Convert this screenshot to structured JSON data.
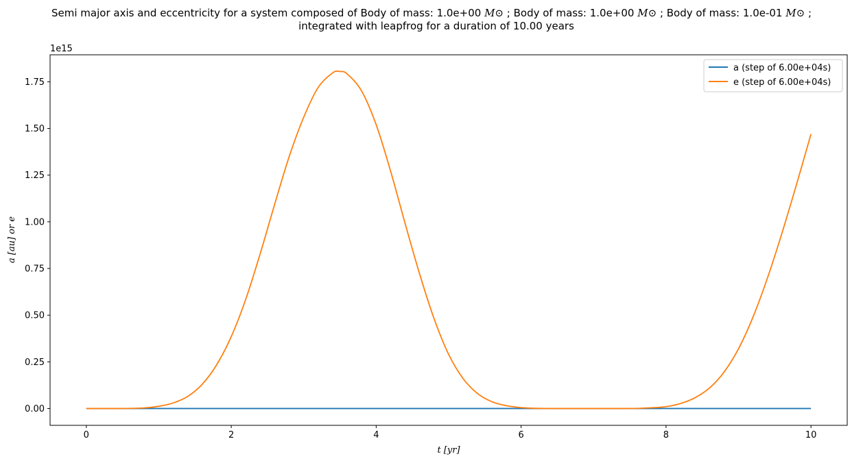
{
  "chart_data": {
    "type": "line",
    "title_line1_parts": [
      "Semi major axis and eccentricity for a system composed of Body of mass: 1.0e+00 ",
      " ; Body of mass: 1.0e+00 ",
      " ; Body of mass: 1.0e-01 ",
      " ;"
    ],
    "msun_symbol": "M⊙",
    "title_line2": "integrated with leapfrog for a duration of 10.00 years",
    "xlabel": "t [yr]",
    "ylabel": "a [au] or e",
    "y_offset_label": "1e15",
    "xlim": [
      -0.5,
      10.5
    ],
    "ylim": [
      -90000000000000.0,
      1894500000000000.0
    ],
    "x_ticks": [
      0,
      2,
      4,
      6,
      8,
      10
    ],
    "x_tick_labels": [
      "0",
      "2",
      "4",
      "6",
      "8",
      "10"
    ],
    "y_ticks": [
      0,
      250000000000000.0,
      500000000000000.0,
      750000000000000.0,
      1000000000000000.0,
      1250000000000000.0,
      1500000000000000.0,
      1750000000000000.0
    ],
    "y_tick_labels": [
      "0.00",
      "0.25",
      "0.50",
      "0.75",
      "1.00",
      "1.25",
      "1.50",
      "1.75"
    ],
    "grid": false,
    "legend_position": "top-right",
    "series": [
      {
        "name": "a (step of 6.00e+04s)",
        "color": "#1f77b4",
        "x": [
          0,
          1,
          2,
          3,
          4,
          5,
          6,
          7,
          8,
          9,
          10
        ],
        "y": [
          0,
          0,
          0,
          0,
          0,
          0,
          0,
          0,
          0,
          0,
          0
        ]
      },
      {
        "name": "e (step of 6.00e+04s)",
        "color": "#ff7f0e",
        "x": [
          0,
          0.5,
          0.8,
          1.0,
          1.2,
          1.4,
          1.6,
          1.8,
          2.0,
          2.2,
          2.4,
          2.6,
          2.8,
          3.0,
          3.2,
          3.4,
          3.5,
          3.6,
          3.8,
          4.0,
          4.2,
          4.4,
          4.6,
          4.8,
          5.0,
          5.2,
          5.4,
          5.6,
          5.8,
          6.0,
          6.2,
          6.5,
          7.0,
          7.5,
          7.8,
          8.0,
          8.2,
          8.4,
          8.6,
          8.8,
          9.0,
          9.2,
          9.4,
          9.6,
          9.8,
          10.0
        ],
        "y": [
          0.0,
          0.0,
          3000000000000.0,
          12000000000000.0,
          30000000000000.0,
          65000000000000.0,
          130000000000000.0,
          235000000000000.0,
          385000000000000.0,
          585000000000000.0,
          830000000000000.0,
          1095000000000000.0,
          1350000000000000.0,
          1560000000000000.0,
          1720000000000000.0,
          1798000000000000.0,
          1805000000000000.0,
          1792000000000000.0,
          1700000000000000.0,
          1520000000000000.0,
          1270000000000000.0,
          990000000000000.0,
          720000000000000.0,
          480000000000000.0,
          290000000000000.0,
          160000000000000.0,
          80000000000000.0,
          36000000000000.0,
          15000000000000.0,
          5000000000000.0,
          1000000000000.0,
          0.0,
          0.0,
          0.0,
          4000000000000.0,
          10000000000000.0,
          27000000000000.0,
          58000000000000.0,
          110000000000000.0,
          195000000000000.0,
          320000000000000.0,
          490000000000000.0,
          700000000000000.0,
          940000000000000.0,
          1200000000000000.0,
          1470000000000000.0
        ]
      }
    ]
  }
}
